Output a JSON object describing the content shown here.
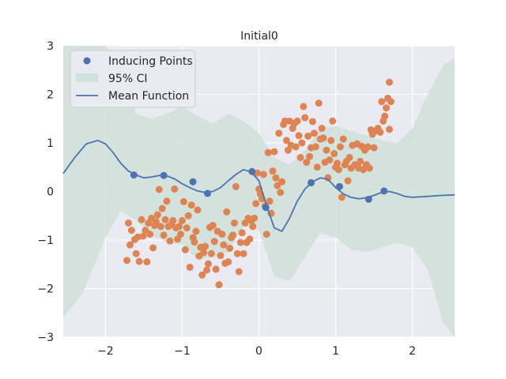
{
  "chart_data": {
    "type": "scatter",
    "title": "Initial0",
    "xlabel": "",
    "ylabel": "",
    "xlim": [
      -2.55,
      2.55
    ],
    "ylim": [
      -3,
      3
    ],
    "xticks": [
      -2,
      -1,
      0,
      1,
      2
    ],
    "yticks": [
      -3,
      -2,
      -1,
      0,
      1,
      2,
      3
    ],
    "xtick_labels": [
      "−2",
      "−1",
      "0",
      "1",
      "2"
    ],
    "ytick_labels": [
      "−3",
      "−2",
      "−1",
      "0",
      "1",
      "2",
      "3"
    ],
    "grid": true,
    "legend_position": "top-left",
    "legend": {
      "inducing_label": "Inducing Points",
      "ci_label": "95% CI",
      "mean_label": "Mean Function"
    },
    "colors": {
      "background": "#eaeaf2",
      "grid": "#ffffff",
      "inducing": "#4c72b0",
      "ci": "#d0e1da",
      "mean": "#4c72b0",
      "data": "#dd8452"
    },
    "mean_function": {
      "x": [
        -2.55,
        -2.4,
        -2.25,
        -2.1,
        -2.0,
        -1.9,
        -1.8,
        -1.7,
        -1.6,
        -1.5,
        -1.4,
        -1.3,
        -1.2,
        -1.1,
        -1.0,
        -0.9,
        -0.8,
        -0.7,
        -0.6,
        -0.5,
        -0.4,
        -0.3,
        -0.2,
        -0.1,
        0.0,
        0.1,
        0.2,
        0.3,
        0.4,
        0.5,
        0.6,
        0.7,
        0.8,
        0.9,
        1.0,
        1.1,
        1.2,
        1.3,
        1.4,
        1.5,
        1.6,
        1.7,
        1.8,
        1.9,
        2.0,
        2.2,
        2.4,
        2.55
      ],
      "y": [
        0.37,
        0.7,
        0.98,
        1.05,
        0.98,
        0.8,
        0.58,
        0.42,
        0.34,
        0.28,
        0.3,
        0.33,
        0.32,
        0.26,
        0.16,
        0.08,
        0.01,
        -0.02,
        0.0,
        0.08,
        0.22,
        0.35,
        0.45,
        0.4,
        0.22,
        -0.3,
        -0.75,
        -0.82,
        -0.55,
        -0.2,
        0.05,
        0.2,
        0.28,
        0.25,
        0.08,
        -0.05,
        -0.12,
        -0.15,
        -0.13,
        -0.08,
        -0.02,
        0.0,
        -0.04,
        -0.1,
        -0.12,
        -0.1,
        -0.08,
        -0.07
      ]
    },
    "confidence_interval": {
      "x": [
        -2.55,
        -2.3,
        -2.0,
        -1.8,
        -1.6,
        -1.4,
        -1.2,
        -1.0,
        -0.8,
        -0.6,
        -0.4,
        -0.2,
        0.0,
        0.2,
        0.4,
        0.6,
        0.8,
        1.0,
        1.2,
        1.4,
        1.6,
        1.8,
        2.0,
        2.2,
        2.4,
        2.55
      ],
      "upper": [
        3.0,
        3.0,
        3.0,
        2.6,
        1.6,
        1.5,
        1.6,
        1.75,
        1.55,
        1.4,
        1.6,
        1.45,
        1.2,
        0.7,
        0.55,
        0.85,
        1.3,
        1.35,
        1.25,
        1.15,
        1.05,
        1.0,
        1.3,
        2.0,
        2.6,
        2.75
      ],
      "lower": [
        -2.6,
        -2.1,
        -0.95,
        -0.4,
        -0.6,
        -0.9,
        -1.05,
        -1.1,
        -1.4,
        -1.35,
        -1.25,
        -0.7,
        -0.8,
        -1.75,
        -1.85,
        -1.35,
        -0.85,
        -0.95,
        -1.2,
        -1.25,
        -1.15,
        -1.05,
        -1.15,
        -1.6,
        -2.7,
        -3.0
      ]
    },
    "inducing_points": [
      {
        "x": -1.63,
        "y": 0.34
      },
      {
        "x": -1.24,
        "y": 0.33
      },
      {
        "x": -0.86,
        "y": 0.2
      },
      {
        "x": -0.67,
        "y": -0.04
      },
      {
        "x": -0.09,
        "y": 0.41
      },
      {
        "x": 0.09,
        "y": -0.33
      },
      {
        "x": 0.68,
        "y": 0.18
      },
      {
        "x": 1.05,
        "y": 0.1
      },
      {
        "x": 1.43,
        "y": -0.16
      },
      {
        "x": 1.63,
        "y": 0.01
      }
    ],
    "data_points": [
      {
        "x": -1.7,
        "y": -0.65
      },
      {
        "x": -1.72,
        "y": -1.42
      },
      {
        "x": -1.68,
        "y": -1.1
      },
      {
        "x": -1.66,
        "y": -0.8
      },
      {
        "x": -1.62,
        "y": -0.99
      },
      {
        "x": -1.6,
        "y": -1.28
      },
      {
        "x": -1.58,
        "y": -0.94
      },
      {
        "x": -1.56,
        "y": -1.44
      },
      {
        "x": -1.53,
        "y": -0.58
      },
      {
        "x": -1.51,
        "y": -0.92
      },
      {
        "x": -1.48,
        "y": -0.8
      },
      {
        "x": -1.46,
        "y": -1.45
      },
      {
        "x": -1.44,
        "y": -0.65
      },
      {
        "x": -1.42,
        "y": -0.88
      },
      {
        "x": -1.4,
        "y": -0.55
      },
      {
        "x": -1.38,
        "y": -1.16
      },
      {
        "x": -1.36,
        "y": -0.7
      },
      {
        "x": -1.34,
        "y": -0.62
      },
      {
        "x": -1.32,
        "y": -0.48
      },
      {
        "x": -1.3,
        "y": 0.04
      },
      {
        "x": -1.28,
        "y": -0.72
      },
      {
        "x": -1.26,
        "y": -0.35
      },
      {
        "x": -1.24,
        "y": -0.9
      },
      {
        "x": -1.22,
        "y": -0.58
      },
      {
        "x": -1.2,
        "y": -0.2
      },
      {
        "x": -1.18,
        "y": -0.72
      },
      {
        "x": -1.16,
        "y": -1.02
      },
      {
        "x": -1.14,
        "y": -0.68
      },
      {
        "x": -1.12,
        "y": -0.6
      },
      {
        "x": -1.1,
        "y": 0.05
      },
      {
        "x": -1.08,
        "y": -0.75
      },
      {
        "x": -1.06,
        "y": -0.98
      },
      {
        "x": -1.04,
        "y": -0.72
      },
      {
        "x": -1.02,
        "y": -0.88
      },
      {
        "x": -1.0,
        "y": -0.6
      },
      {
        "x": -0.98,
        "y": -0.21
      },
      {
        "x": -0.96,
        "y": -1.2
      },
      {
        "x": -0.94,
        "y": -0.75
      },
      {
        "x": -0.92,
        "y": -0.5
      },
      {
        "x": -0.9,
        "y": -1.56
      },
      {
        "x": -0.88,
        "y": -0.28
      },
      {
        "x": -0.86,
        "y": -0.95
      },
      {
        "x": -0.84,
        "y": -1.04
      },
      {
        "x": -0.82,
        "y": -0.82
      },
      {
        "x": -0.8,
        "y": -0.38
      },
      {
        "x": -0.78,
        "y": -1.33
      },
      {
        "x": -0.76,
        "y": -1.15
      },
      {
        "x": -0.74,
        "y": -1.72
      },
      {
        "x": -0.72,
        "y": -1.26
      },
      {
        "x": -0.7,
        "y": -1.13
      },
      {
        "x": -0.68,
        "y": -1.62
      },
      {
        "x": -0.66,
        "y": -1.49
      },
      {
        "x": -0.64,
        "y": -0.74
      },
      {
        "x": -0.62,
        "y": -1.28
      },
      {
        "x": -0.6,
        "y": -0.7
      },
      {
        "x": -0.58,
        "y": -1.03
      },
      {
        "x": -0.56,
        "y": -1.6
      },
      {
        "x": -0.54,
        "y": -0.82
      },
      {
        "x": -0.52,
        "y": -1.92
      },
      {
        "x": -0.5,
        "y": -1.32
      },
      {
        "x": -0.48,
        "y": -0.88
      },
      {
        "x": -0.46,
        "y": -1.1
      },
      {
        "x": -0.44,
        "y": -1.48
      },
      {
        "x": -0.42,
        "y": -0.42
      },
      {
        "x": -0.4,
        "y": -1.45
      },
      {
        "x": -0.38,
        "y": -1.17
      },
      {
        "x": -0.36,
        "y": -0.95
      },
      {
        "x": -0.34,
        "y": -0.9
      },
      {
        "x": -0.32,
        "y": -0.65
      },
      {
        "x": -0.3,
        "y": 0.1
      },
      {
        "x": -0.28,
        "y": -1.28
      },
      {
        "x": -0.26,
        "y": -1.65
      },
      {
        "x": -0.24,
        "y": -1.05
      },
      {
        "x": -0.22,
        "y": -0.85
      },
      {
        "x": -0.2,
        "y": -1.28
      },
      {
        "x": -0.18,
        "y": -0.65
      },
      {
        "x": -0.16,
        "y": -1.05
      },
      {
        "x": -0.14,
        "y": -0.55
      },
      {
        "x": -0.12,
        "y": -0.98
      },
      {
        "x": -0.1,
        "y": -0.6
      },
      {
        "x": -0.08,
        "y": -0.72
      },
      {
        "x": -0.06,
        "y": -0.55
      },
      {
        "x": -0.04,
        "y": -0.25
      },
      {
        "x": -0.02,
        "y": 0.38
      },
      {
        "x": 0.0,
        "y": 0.05
      },
      {
        "x": 0.02,
        "y": -0.05
      },
      {
        "x": 0.04,
        "y": -0.15
      },
      {
        "x": 0.06,
        "y": 0.35
      },
      {
        "x": 0.08,
        "y": -0.3
      },
      {
        "x": 0.1,
        "y": -0.88
      },
      {
        "x": 0.12,
        "y": 0.8
      },
      {
        "x": 0.14,
        "y": -0.2
      },
      {
        "x": 0.16,
        "y": -0.45
      },
      {
        "x": 0.18,
        "y": 0.42
      },
      {
        "x": 0.2,
        "y": 0.82
      },
      {
        "x": 0.22,
        "y": 0.28
      },
      {
        "x": 0.24,
        "y": 0.12
      },
      {
        "x": 0.26,
        "y": 1.2
      },
      {
        "x": 0.28,
        "y": -0.02
      },
      {
        "x": 0.3,
        "y": 0.2
      },
      {
        "x": 0.32,
        "y": 1.38
      },
      {
        "x": 0.34,
        "y": 1.45
      },
      {
        "x": 0.36,
        "y": 1.05
      },
      {
        "x": 0.38,
        "y": 0.85
      },
      {
        "x": 0.4,
        "y": 1.45
      },
      {
        "x": 0.42,
        "y": 0.95
      },
      {
        "x": 0.44,
        "y": 1.3
      },
      {
        "x": 0.46,
        "y": 1.4
      },
      {
        "x": 0.48,
        "y": 0.92
      },
      {
        "x": 0.5,
        "y": 1.45
      },
      {
        "x": 0.52,
        "y": 1.15
      },
      {
        "x": 0.54,
        "y": 0.7
      },
      {
        "x": 0.56,
        "y": 1.0
      },
      {
        "x": 0.58,
        "y": 1.75
      },
      {
        "x": 0.6,
        "y": 1.52
      },
      {
        "x": 0.62,
        "y": 0.6
      },
      {
        "x": 0.64,
        "y": 1.14
      },
      {
        "x": 0.66,
        "y": 0.72
      },
      {
        "x": 0.68,
        "y": 0.9
      },
      {
        "x": 0.7,
        "y": 1.44
      },
      {
        "x": 0.72,
        "y": 1.2
      },
      {
        "x": 0.74,
        "y": 0.92
      },
      {
        "x": 0.76,
        "y": 0.5
      },
      {
        "x": 0.78,
        "y": 1.82
      },
      {
        "x": 0.8,
        "y": 1.08
      },
      {
        "x": 0.82,
        "y": 1.3
      },
      {
        "x": 0.84,
        "y": 1.1
      },
      {
        "x": 0.86,
        "y": 0.6
      },
      {
        "x": 0.88,
        "y": 0.85
      },
      {
        "x": 0.9,
        "y": 0.28
      },
      {
        "x": 0.92,
        "y": 0.65
      },
      {
        "x": 0.94,
        "y": 1.05
      },
      {
        "x": 0.96,
        "y": 1.45
      },
      {
        "x": 0.98,
        "y": 0.78
      },
      {
        "x": 1.0,
        "y": 0.5
      },
      {
        "x": 1.02,
        "y": 0.58
      },
      {
        "x": 1.04,
        "y": 0.45
      },
      {
        "x": 1.06,
        "y": 0.92
      },
      {
        "x": 1.08,
        "y": -0.12
      },
      {
        "x": 1.1,
        "y": 1.08
      },
      {
        "x": 1.12,
        "y": 0.55
      },
      {
        "x": 1.14,
        "y": 0.62
      },
      {
        "x": 1.16,
        "y": 0.22
      },
      {
        "x": 1.18,
        "y": 0.7
      },
      {
        "x": 1.2,
        "y": 0.48
      },
      {
        "x": 1.22,
        "y": 0.95
      },
      {
        "x": 1.25,
        "y": 0.55
      },
      {
        "x": 1.28,
        "y": 0.98
      },
      {
        "x": 1.3,
        "y": 0.48
      },
      {
        "x": 1.32,
        "y": 0.62
      },
      {
        "x": 1.34,
        "y": 0.93
      },
      {
        "x": 1.36,
        "y": 0.45
      },
      {
        "x": 1.38,
        "y": 0.85
      },
      {
        "x": 1.4,
        "y": 0.55
      },
      {
        "x": 1.42,
        "y": 0.92
      },
      {
        "x": 1.44,
        "y": 0.48
      },
      {
        "x": 1.46,
        "y": 1.27
      },
      {
        "x": 1.48,
        "y": 1.18
      },
      {
        "x": 1.5,
        "y": 0.9
      },
      {
        "x": 1.52,
        "y": 1.25
      },
      {
        "x": 1.55,
        "y": 1.3
      },
      {
        "x": 1.58,
        "y": 1.22
      },
      {
        "x": 1.6,
        "y": 1.85
      },
      {
        "x": 1.62,
        "y": 1.45
      },
      {
        "x": 1.64,
        "y": 1.55
      },
      {
        "x": 1.66,
        "y": 1.72
      },
      {
        "x": 1.68,
        "y": 1.92
      },
      {
        "x": 1.7,
        "y": 1.28
      },
      {
        "x": 1.72,
        "y": 1.85
      },
      {
        "x": 1.7,
        "y": 2.25
      }
    ]
  }
}
